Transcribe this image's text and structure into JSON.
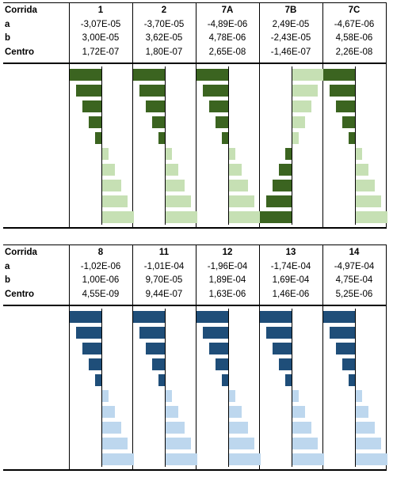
{
  "chart_data": {
    "type": "bar",
    "row_labels": [
      "Corrida",
      "a",
      "b",
      "Centro"
    ],
    "colors": {
      "block1_negative": "#3b6420",
      "block1_positive": "#c6e0b4",
      "block2_negative": "#1f4e79",
      "block2_positive": "#bdd7ee"
    },
    "blocks": [
      {
        "runs": [
          {
            "corrida": "1",
            "a": "-3,07E-05",
            "b": "3,00E-05",
            "centro": "1,72E-07",
            "bars": [
              -5,
              -4,
              -3,
              -2,
              -1,
              1,
              2,
              3,
              4,
              5
            ]
          },
          {
            "corrida": "2",
            "a": "-3,70E-05",
            "b": "3,62E-05",
            "centro": "1,80E-07",
            "bars": [
              -5,
              -4,
              -3,
              -2,
              -1,
              1,
              2,
              3,
              4,
              5
            ]
          },
          {
            "corrida": "7A",
            "a": "-4,89E-06",
            "b": "4,78E-06",
            "centro": "2,65E-08",
            "bars": [
              -5,
              -4,
              -3,
              -2,
              -1,
              1,
              2,
              3,
              4,
              5
            ]
          },
          {
            "corrida": "7B",
            "a": "2,49E-05",
            "b": "-2,43E-05",
            "centro": "-1,46E-07",
            "bars": [
              5,
              4,
              3,
              2,
              1,
              -1,
              -2,
              -3,
              -4,
              -5
            ]
          },
          {
            "corrida": "7C",
            "a": "-4,67E-06",
            "b": "4,58E-06",
            "centro": "2,26E-08",
            "bars": [
              -5,
              -4,
              -3,
              -2,
              -1,
              1,
              2,
              3,
              4,
              5
            ]
          }
        ]
      },
      {
        "runs": [
          {
            "corrida": "8",
            "a": "-1,02E-06",
            "b": "1,00E-06",
            "centro": "4,55E-09",
            "bars": [
              -5,
              -4,
              -3,
              -2,
              -1,
              1,
              2,
              3,
              4,
              5
            ]
          },
          {
            "corrida": "11",
            "a": "-1,01E-04",
            "b": "9,70E-05",
            "centro": "9,44E-07",
            "bars": [
              -5,
              -4,
              -3,
              -2,
              -1,
              1,
              2,
              3,
              4,
              5
            ]
          },
          {
            "corrida": "12",
            "a": "-1,96E-04",
            "b": "1,89E-04",
            "centro": "1,63E-06",
            "bars": [
              -5,
              -4,
              -3,
              -2,
              -1,
              1,
              2,
              3,
              4,
              5
            ]
          },
          {
            "corrida": "13",
            "a": "-1,74E-04",
            "b": "1,69E-04",
            "centro": "1,46E-06",
            "bars": [
              -5,
              -4,
              -3,
              -2,
              -1,
              1,
              2,
              3,
              4,
              5
            ]
          },
          {
            "corrida": "14",
            "a": "-4,97E-04",
            "b": "4,75E-04",
            "centro": "5,25E-06",
            "bars": [
              -5,
              -4,
              -3,
              -2,
              -1,
              1,
              2,
              3,
              4,
              5
            ]
          }
        ]
      }
    ]
  }
}
